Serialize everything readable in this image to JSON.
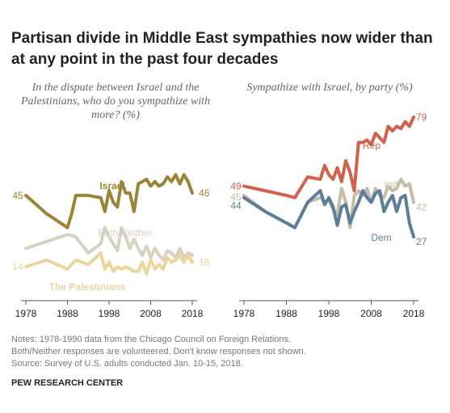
{
  "header": {
    "title": "Partisan divide in Middle East sympathies now wider than at any point in the past four decades"
  },
  "notes": [
    "Notes: 1978-1990 data from the Chicago Council on Foreign Relations.",
    "Both/Neither responses are volunteered. Don't know responses not shown.",
    "Source: Survey of U.S. adults conducted Jan. 10-15, 2018."
  ],
  "source_org": "PEW RESEARCH CENTER",
  "chart_data": [
    {
      "type": "line",
      "subtitle": "In the dispute between Israel and the Palestinians, who do you sympathize with more? (%)",
      "xlim": [
        1978,
        2018
      ],
      "ylim": [
        0,
        80
      ],
      "x_ticks": [
        "1978",
        "1988",
        "1998",
        "2008",
        "2018"
      ],
      "grid": false,
      "series": [
        {
          "name": "Israel",
          "color": "#9a8537",
          "bold": true,
          "start_label": "45",
          "end_label": "46",
          "x": [
            1978,
            1983,
            1988,
            1989,
            1990,
            1993,
            1996,
            1997,
            1998,
            1999,
            2000,
            2001,
            2002,
            2003,
            2004,
            2005,
            2006,
            2007,
            2008,
            2009,
            2010,
            2011,
            2012,
            2013,
            2014,
            2015,
            2016,
            2017,
            2018
          ],
          "y": [
            45,
            37,
            31,
            37,
            45,
            45,
            44,
            38,
            47,
            42,
            40,
            51,
            46,
            46,
            38,
            50,
            51,
            52,
            49,
            51,
            49,
            50,
            53,
            51,
            54,
            50,
            54,
            51,
            46
          ]
        },
        {
          "name": "Both/Neither",
          "color": "#d6d2c2",
          "bold": false,
          "start_label": "",
          "end_label": "",
          "x": [
            1978,
            1983,
            1988,
            1990,
            1993,
            1996,
            1997,
            1998,
            1999,
            2000,
            2001,
            2002,
            2003,
            2004,
            2005,
            2006,
            2007,
            2008,
            2009,
            2010,
            2011,
            2012,
            2013,
            2014,
            2015,
            2016,
            2017,
            2018
          ],
          "y": [
            22,
            25,
            28,
            27,
            20,
            24,
            31,
            27,
            24,
            21,
            31,
            27,
            22,
            26,
            22,
            19,
            23,
            18,
            22,
            19,
            17,
            21,
            20,
            18,
            22,
            18,
            20,
            19
          ]
        },
        {
          "name": "The Palestinians",
          "color": "#e8d69c",
          "bold": true,
          "start_label": "14",
          "end_label": "16",
          "x": [
            1978,
            1983,
            1988,
            1990,
            1993,
            1996,
            1997,
            1998,
            1999,
            2000,
            2001,
            2002,
            2003,
            2004,
            2005,
            2006,
            2007,
            2008,
            2009,
            2010,
            2011,
            2012,
            2013,
            2014,
            2015,
            2016,
            2017,
            2018
          ],
          "y": [
            14,
            17,
            13,
            17,
            15,
            20,
            13,
            16,
            12,
            14,
            13,
            14,
            13,
            12,
            12,
            16,
            11,
            17,
            13,
            15,
            13,
            18,
            16,
            17,
            19,
            16,
            19,
            16
          ]
        }
      ]
    },
    {
      "type": "line",
      "subtitle": "Sympathize with Israel, by party (%)",
      "xlim": [
        1978,
        2018
      ],
      "ylim": [
        0,
        80
      ],
      "x_ticks": [
        "1978",
        "1988",
        "1998",
        "2008",
        "2018"
      ],
      "grid": false,
      "series": [
        {
          "name": "Rep",
          "color": "#d0624e",
          "bold": false,
          "start_label": "49",
          "end_label": "79",
          "x": [
            1978,
            1983,
            1988,
            1990,
            1993,
            1996,
            1997,
            1998,
            1999,
            2000,
            2001,
            2002,
            2003,
            2004,
            2005,
            2006,
            2007,
            2008,
            2009,
            2010,
            2011,
            2012,
            2013,
            2014,
            2015,
            2016,
            2017,
            2018
          ],
          "y": [
            49,
            47,
            45,
            44,
            53,
            52,
            58,
            54,
            52,
            57,
            51,
            60,
            55,
            47,
            68,
            68,
            69,
            67,
            72,
            70,
            68,
            75,
            73,
            75,
            74,
            77,
            75,
            79
          ]
        },
        {
          "name": "Ind",
          "color": "#c4bea6",
          "bold": false,
          "start_label": "45",
          "end_label": "42",
          "x": [
            1978,
            1983,
            1988,
            1990,
            1993,
            1996,
            1997,
            1998,
            1999,
            2000,
            2001,
            2002,
            2003,
            2004,
            2005,
            2006,
            2007,
            2008,
            2009,
            2010,
            2011,
            2012,
            2013,
            2014,
            2015,
            2016,
            2017,
            2018
          ],
          "y": [
            45,
            38,
            33,
            31,
            42,
            44,
            42,
            43,
            39,
            37,
            48,
            42,
            31,
            45,
            47,
            45,
            48,
            42,
            48,
            45,
            44,
            49,
            47,
            48,
            52,
            49,
            50,
            42
          ]
        },
        {
          "name": "Dem",
          "color": "#5d7e99",
          "bold": false,
          "start_label": "44",
          "end_label": "27",
          "x": [
            1978,
            1983,
            1988,
            1990,
            1993,
            1996,
            1997,
            1998,
            1999,
            2000,
            2001,
            2002,
            2003,
            2004,
            2005,
            2006,
            2007,
            2008,
            2009,
            2010,
            2011,
            2012,
            2013,
            2014,
            2015,
            2016,
            2017,
            2018
          ],
          "y": [
            44,
            38,
            33,
            31,
            42,
            47,
            41,
            44,
            40,
            32,
            40,
            41,
            33,
            38,
            42,
            47,
            44,
            42,
            46,
            47,
            38,
            42,
            45,
            38,
            44,
            45,
            33,
            27
          ]
        }
      ]
    }
  ]
}
